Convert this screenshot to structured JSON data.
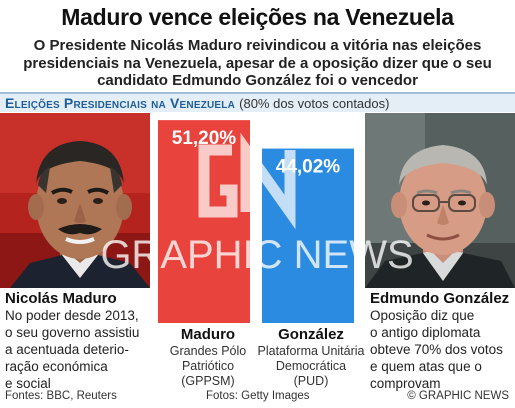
{
  "title": "Maduro vence eleições na Venezuela",
  "subtitle": "O Presidente Nicolás Maduro reivindicou a vitória nas eleições presidenciais na Venezuela, apesar de a oposição dizer que o seu candidato Edmundo González foi o vencedor",
  "header": {
    "label": "Eleições Presidenciais na Venezuela",
    "note": "(80% dos votos contados)"
  },
  "left_candidate": {
    "name": "Nicolás Maduro",
    "desc_lines": [
      "No poder desde 2013,",
      "o seu governo assistiu",
      "a acentuada deterio-",
      "ração económica",
      "e social"
    ]
  },
  "right_candidate": {
    "name": "Edmundo González",
    "desc_lines": [
      "Oposição diz que",
      "o antigo diplomata",
      "obteve 70% dos votos",
      "e quem atas que o",
      "comprovam"
    ]
  },
  "parties": [
    {
      "name": "Maduro",
      "desc_lines": [
        "Grandes Pólo",
        "Patriótico",
        "(GPPSM)"
      ]
    },
    {
      "name": "González",
      "desc_lines": [
        "Plataforma Unitária",
        "Democrática",
        "(PUD)"
      ]
    }
  ],
  "chart_data": {
    "type": "bar",
    "categories": [
      "Maduro",
      "González"
    ],
    "values": [
      51.2,
      44.02
    ],
    "data_labels": [
      "51,20%",
      "44,02%"
    ],
    "colors": [
      "#e8433c",
      "#2a8be0"
    ],
    "ylim": [
      0,
      53
    ]
  },
  "watermark": "GRAPHIC NEWS",
  "footer": {
    "sources": "Fontes: BBC, Reuters",
    "photos": "Fotos: Getty Images",
    "copyright": "© GRAPHIC NEWS"
  }
}
